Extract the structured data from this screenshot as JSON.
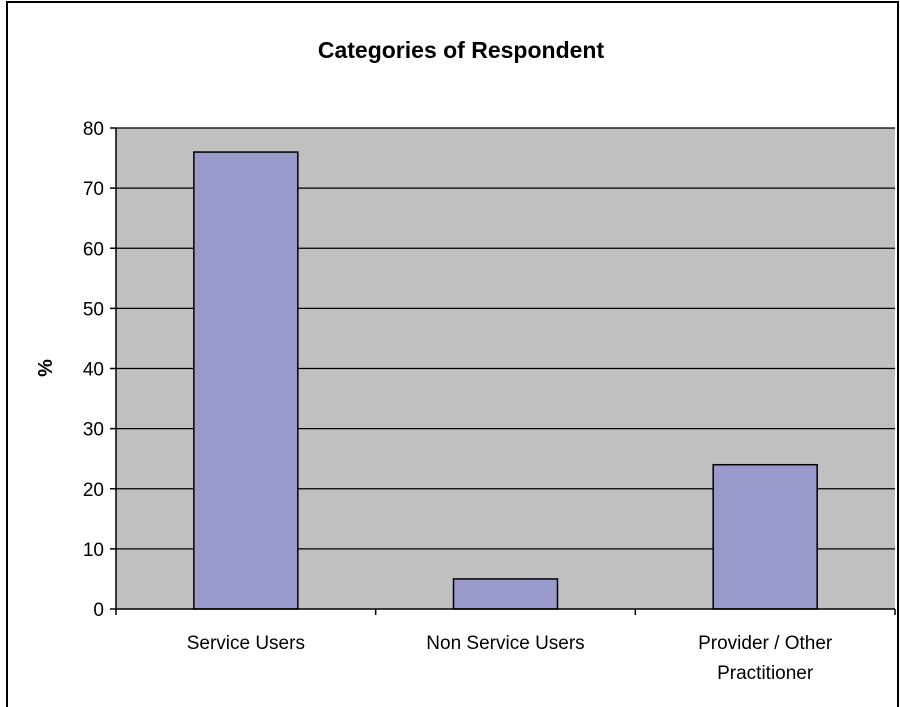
{
  "chart_data": {
    "type": "bar",
    "title": "Categories of Respondent",
    "xlabel": "",
    "ylabel": "%",
    "categories": [
      [
        "Service Users"
      ],
      [
        "Non Service Users"
      ],
      [
        "Provider / Other",
        "Practitioner"
      ]
    ],
    "values": [
      76,
      5,
      24
    ],
    "ylim": [
      0,
      80
    ],
    "yticks": [
      0,
      10,
      20,
      30,
      40,
      50,
      60,
      70,
      80
    ],
    "grid": true,
    "legend": "none",
    "colors": {
      "bar_fill": "#9999cc",
      "bar_stroke": "#000000",
      "plot_background": "#c0c0c0",
      "gridline": "#000000"
    }
  }
}
